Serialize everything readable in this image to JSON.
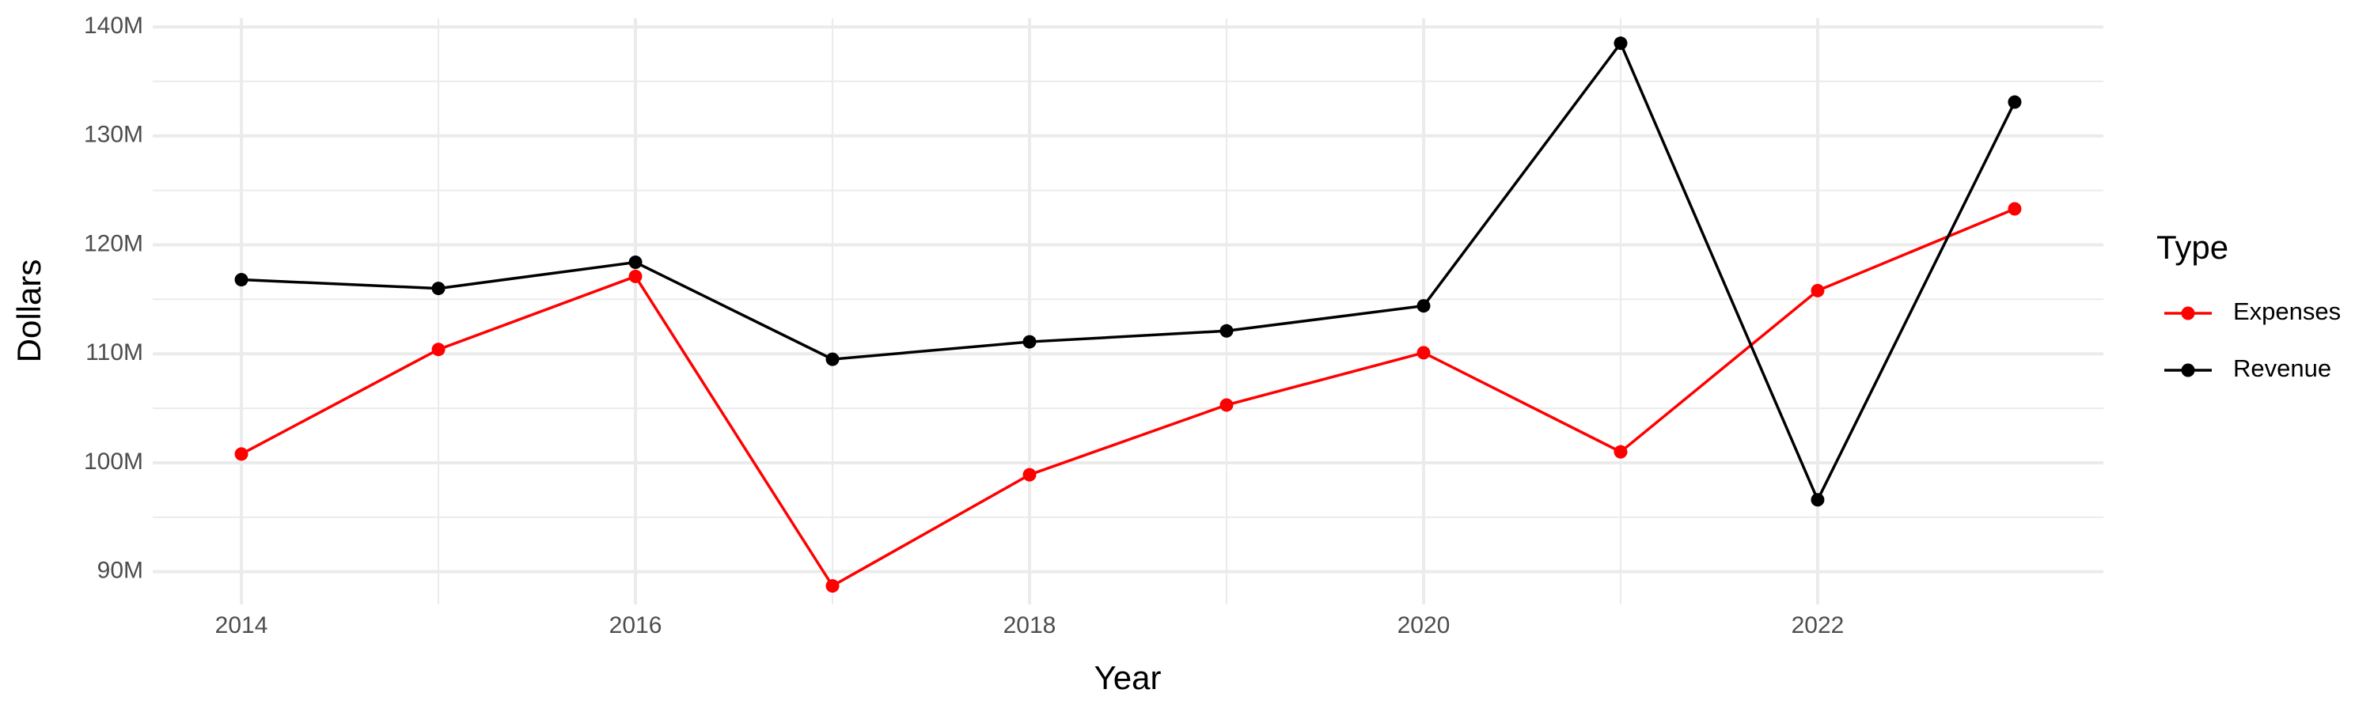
{
  "chart_data": {
    "type": "line",
    "x_label": "Year",
    "y_label": "Dollars",
    "legend_title": "Type",
    "x": [
      2014,
      2015,
      2016,
      2017,
      2018,
      2019,
      2020,
      2021,
      2022,
      2023
    ],
    "series": [
      {
        "name": "Expenses",
        "color": "#ff0000",
        "values": [
          100800000,
          110400000,
          117100000,
          88700000,
          98900000,
          105300000,
          110100000,
          101000000,
          115800000,
          123300000
        ]
      },
      {
        "name": "Revenue",
        "color": "#000000",
        "values": [
          116800000,
          116000000,
          118400000,
          109500000,
          111100000,
          112100000,
          114400000,
          138500000,
          96600000,
          133100000
        ]
      }
    ],
    "xlim": [
      2013.55,
      2023.45
    ],
    "xticks": [
      2014,
      2016,
      2018,
      2020,
      2022
    ],
    "ylim": [
      87000000,
      140800000
    ],
    "yticks": [
      {
        "value": 90000000,
        "label": "90M"
      },
      {
        "value": 100000000,
        "label": "100M"
      },
      {
        "value": 110000000,
        "label": "110M"
      },
      {
        "value": 120000000,
        "label": "120M"
      },
      {
        "value": 130000000,
        "label": "130M"
      },
      {
        "value": 140000000,
        "label": "140M"
      }
    ],
    "grid": true,
    "legend_position": "right"
  }
}
